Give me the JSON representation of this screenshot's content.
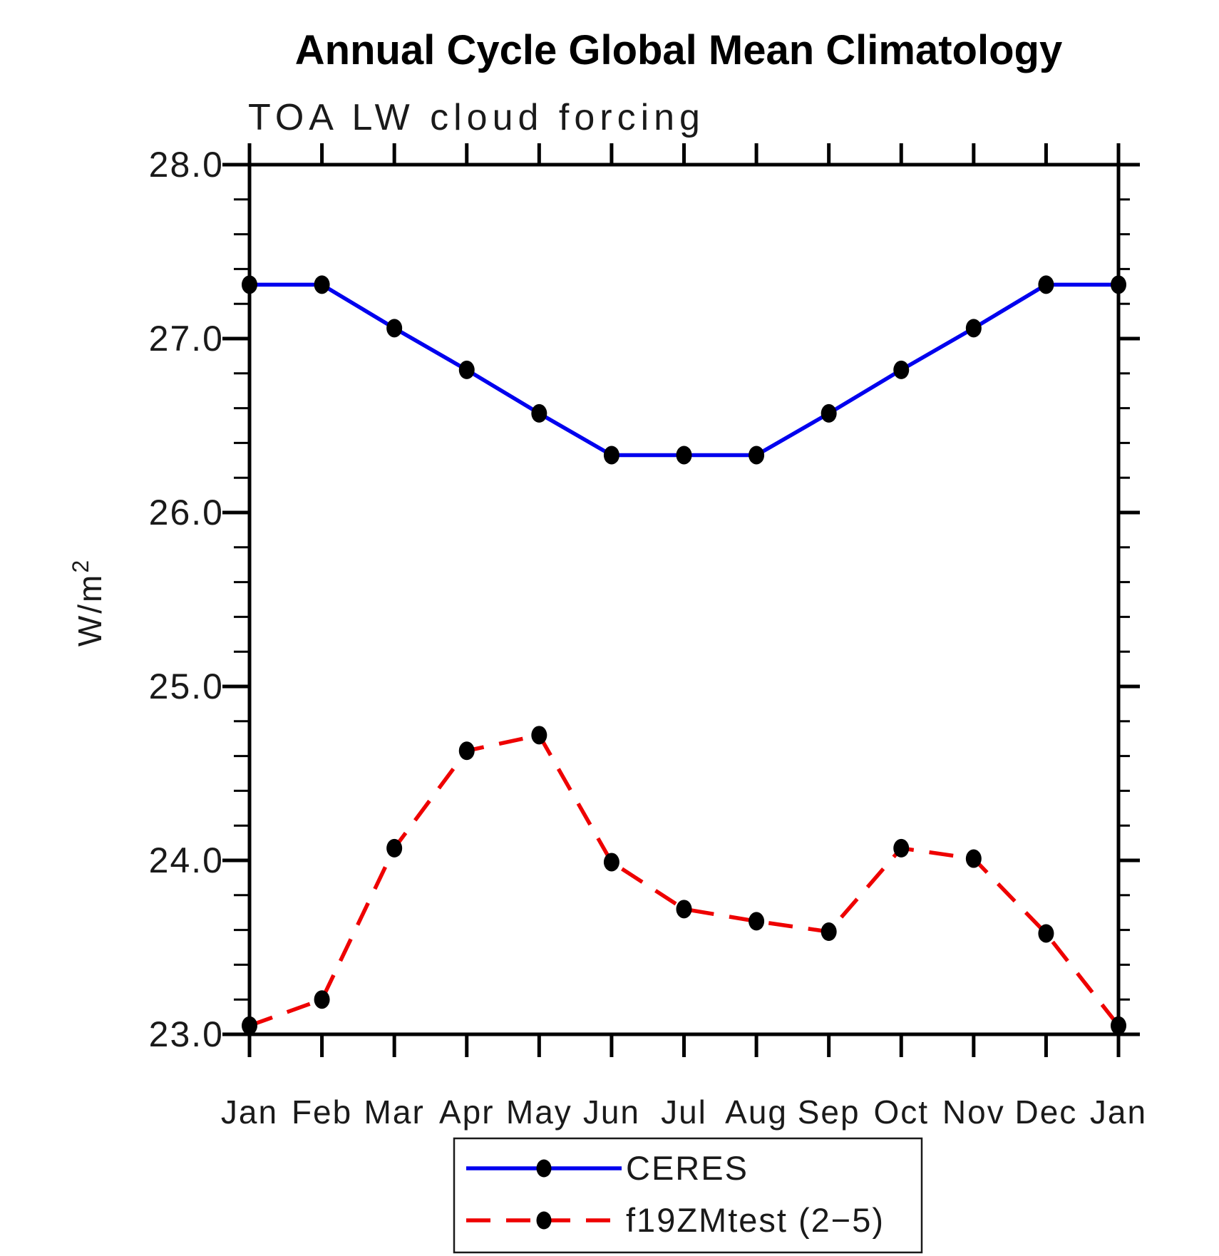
{
  "title": "Annual Cycle Global Mean Climatology",
  "chart_data": {
    "type": "line",
    "title": "Annual Cycle Global Mean Climatology",
    "subtitle": "TOA LW cloud forcing",
    "ylabel": "W/m2",
    "ylabel_base": "W/m",
    "ylabel_exponent": "2",
    "x_categories": [
      "Jan",
      "Feb",
      "Mar",
      "Apr",
      "May",
      "Jun",
      "Jul",
      "Aug",
      "Sep",
      "Oct",
      "Nov",
      "Dec",
      "Jan"
    ],
    "ylim": [
      23.0,
      28.0
    ],
    "y_major_step": 1.0,
    "y_minor_step": 0.2,
    "y_tick_labels": [
      "23.0",
      "24.0",
      "25.0",
      "26.0",
      "27.0",
      "28.0"
    ],
    "grid": false,
    "legend_position": "bottom-center",
    "series": [
      {
        "name": "CERES",
        "line_style": "solid",
        "line_color": "#0000ee",
        "marker": "filled-circle",
        "marker_color": "#000000",
        "values": [
          27.31,
          27.31,
          27.06,
          26.82,
          26.57,
          26.33,
          26.33,
          26.33,
          26.57,
          26.82,
          27.06,
          27.31,
          27.31
        ]
      },
      {
        "name": "f19ZMtest (2−5)",
        "line_style": "dashed",
        "line_color": "#ee0000",
        "marker": "filled-circle",
        "marker_color": "#000000",
        "values": [
          23.05,
          23.2,
          24.07,
          24.63,
          24.72,
          23.99,
          23.72,
          23.65,
          23.59,
          24.07,
          24.01,
          23.58,
          23.05
        ]
      }
    ],
    "colors": {
      "axis": "#000000",
      "text": "#1a1a1a",
      "background": "#ffffff",
      "series_blue": "#0000ee",
      "series_red": "#ee0000",
      "marker": "#000000"
    }
  }
}
